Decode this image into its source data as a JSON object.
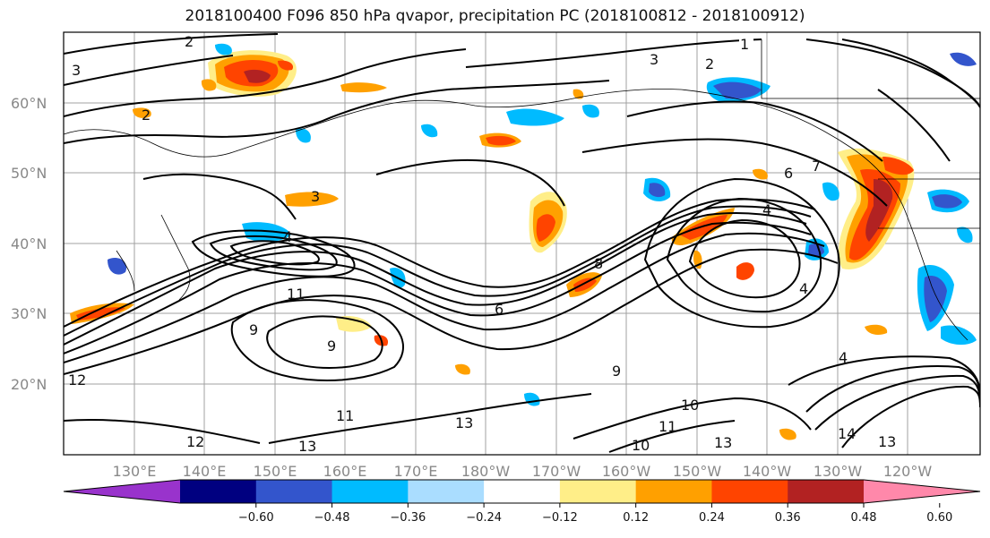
{
  "title": "2018100400 F096 850 hPa qvapor, precipitation PC (2018100812 - 2018100912)",
  "lat_labels": [
    "60°N",
    "50°N",
    "40°N",
    "30°N",
    "20°N"
  ],
  "lon_labels": [
    "130°E",
    "140°E",
    "150°E",
    "160°E",
    "170°E",
    "180°W",
    "170°W",
    "160°W",
    "150°W",
    "140°W",
    "130°W",
    "120°W"
  ],
  "colorbar": {
    "colors": [
      "#9933cc",
      "#000080",
      "#3355cc",
      "#00bbff",
      "#aaddff",
      "#ffffff",
      "#ffee88",
      "#ffa000",
      "#ff4400",
      "#b22222",
      "#ff88aa"
    ],
    "tick_labels": [
      "−0.60",
      "−0.48",
      "−0.36",
      "−0.24",
      "−0.12",
      "0.12",
      "0.24",
      "0.36",
      "0.48",
      "0.60"
    ]
  },
  "contour_labels": [
    "1",
    "2",
    "2",
    "2",
    "3",
    "3",
    "3",
    "4",
    "4",
    "4",
    "4",
    "6",
    "6",
    "7",
    "9",
    "9",
    "10",
    "10",
    "11",
    "11",
    "11",
    "12",
    "12",
    "13",
    "13",
    "13",
    "14",
    "13",
    "8",
    "9"
  ],
  "shading_colors": {
    "positive_low": "#ffee88",
    "positive_mid": "#ffa000",
    "positive_high": "#ff4400",
    "positive_max": "#b22222",
    "negative_low": "#aaddff",
    "negative_mid": "#00bbff",
    "negative_high": "#3355cc"
  }
}
